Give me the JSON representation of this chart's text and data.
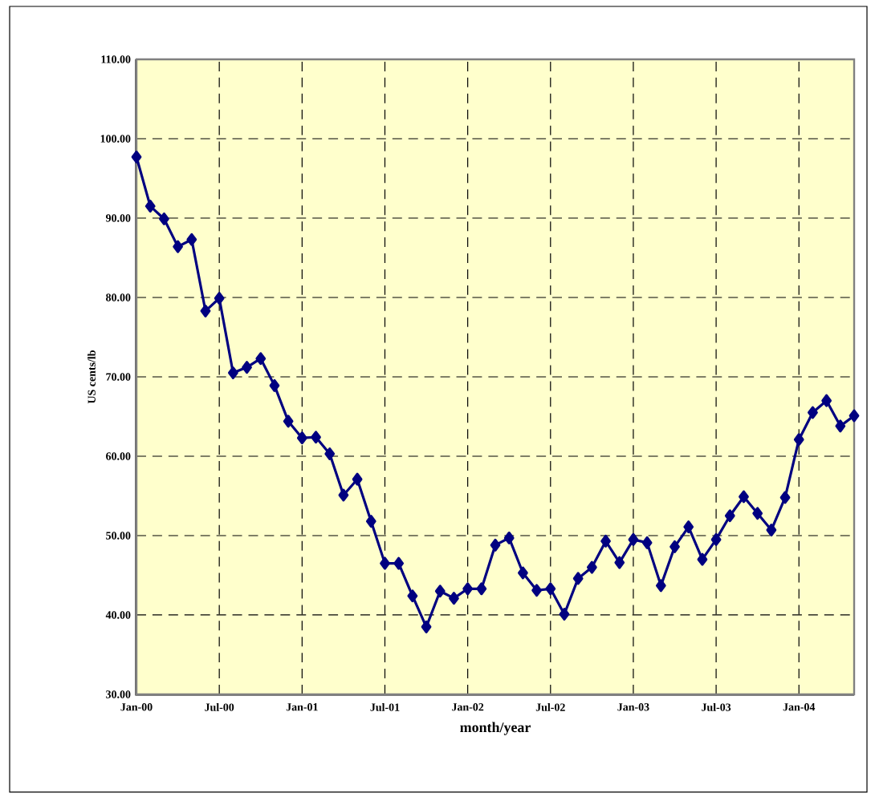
{
  "chart_data": {
    "type": "line",
    "xlabel": "month/year",
    "ylabel": "US cents/lb",
    "x": [
      "2000-01",
      "2000-02",
      "2000-03",
      "2000-04",
      "2000-05",
      "2000-06",
      "2000-07",
      "2000-08",
      "2000-09",
      "2000-10",
      "2000-11",
      "2000-12",
      "2001-01",
      "2001-02",
      "2001-03",
      "2001-04",
      "2001-05",
      "2001-06",
      "2001-07",
      "2001-08",
      "2001-09",
      "2001-10",
      "2001-11",
      "2001-12",
      "2002-01",
      "2002-02",
      "2002-03",
      "2002-04",
      "2002-05",
      "2002-06",
      "2002-07",
      "2002-08",
      "2002-09",
      "2002-10",
      "2002-11",
      "2002-12",
      "2003-01",
      "2003-02",
      "2003-03",
      "2003-04",
      "2003-05",
      "2003-06",
      "2003-07",
      "2003-08",
      "2003-09",
      "2003-10",
      "2003-11",
      "2003-12",
      "2004-01",
      "2004-02",
      "2004-03",
      "2004-04",
      "2004-05"
    ],
    "series": [
      {
        "color": "#000080",
        "values": [
          97.7,
          91.5,
          89.9,
          86.4,
          87.3,
          78.3,
          79.9,
          70.5,
          71.2,
          72.3,
          68.9,
          64.4,
          62.3,
          62.4,
          60.3,
          55.1,
          57.1,
          51.8,
          46.5,
          46.5,
          42.4,
          38.5,
          43.0,
          42.1,
          43.3,
          43.3,
          48.8,
          49.7,
          45.3,
          43.1,
          43.3,
          40.1,
          44.6,
          46.0,
          49.3,
          46.6,
          49.5,
          49.1,
          43.7,
          48.6,
          51.1,
          47.0,
          49.5,
          52.5,
          54.9,
          52.8,
          50.7,
          54.8,
          62.1,
          65.5,
          67.0,
          63.8,
          65.1
        ]
      }
    ],
    "xlim": [
      "2000-01",
      "2004-05"
    ],
    "xticks": [
      {
        "value": "2000-01",
        "label": "Jan-00"
      },
      {
        "value": "2000-07",
        "label": "Jul-00"
      },
      {
        "value": "2001-01",
        "label": "Jan-01"
      },
      {
        "value": "2001-07",
        "label": "Jul-01"
      },
      {
        "value": "2002-01",
        "label": "Jan-02"
      },
      {
        "value": "2002-07",
        "label": "Jul-02"
      },
      {
        "value": "2003-01",
        "label": "Jan-03"
      },
      {
        "value": "2003-07",
        "label": "Jul-03"
      },
      {
        "value": "2004-01",
        "label": "Jan-04"
      }
    ],
    "ylim": [
      30,
      110
    ],
    "yticks": [
      {
        "value": 30,
        "label": "30.00"
      },
      {
        "value": 40,
        "label": "40.00"
      },
      {
        "value": 50,
        "label": "50.00"
      },
      {
        "value": 60,
        "label": "60.00"
      },
      {
        "value": 70,
        "label": "70.00"
      },
      {
        "value": 80,
        "label": "80.00"
      },
      {
        "value": 90,
        "label": "90.00"
      },
      {
        "value": 100,
        "label": "100.00"
      },
      {
        "value": 110,
        "label": "110.00"
      }
    ],
    "grid": true,
    "marker": "diamond",
    "line_style": "solid"
  }
}
